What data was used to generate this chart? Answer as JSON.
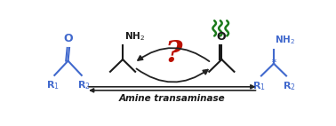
{
  "bg_color": "#ffffff",
  "blue_color": "#4169CD",
  "green_color": "#1a7a1a",
  "red_color": "#BB1100",
  "black_color": "#1a1a1a",
  "arrow_color": "#222222",
  "label_amine_transaminase": "Amine transaminase",
  "fig_width": 3.78,
  "fig_height": 1.42,
  "dpi": 100,
  "xlim": [
    0,
    10
  ],
  "ylim": [
    0,
    3.5
  ]
}
